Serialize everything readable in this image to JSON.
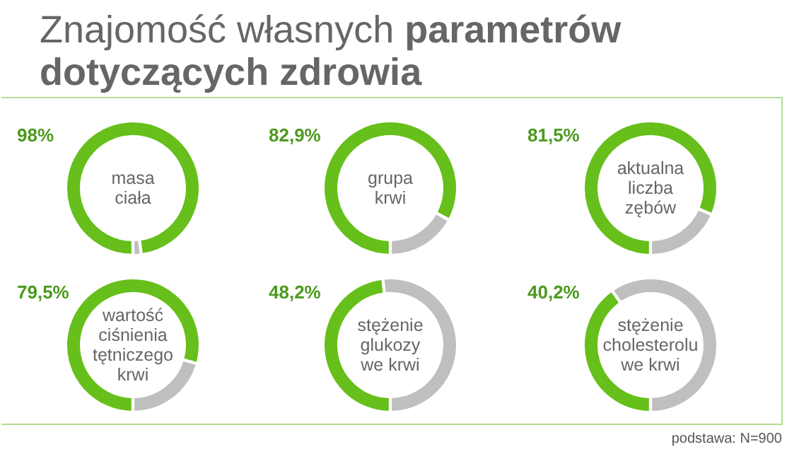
{
  "chart_data": [
    {
      "type": "other",
      "title": "Znajomość własnych parametrów dotyczących zdrowia",
      "annotations": [
        "podstawa: N=900"
      ]
    },
    {
      "type": "donut",
      "title": "masa\nciała",
      "categories": [
        null,
        null
      ],
      "values": [
        98,
        2
      ],
      "colors": [
        "#66bf1a",
        "#bfbfbf"
      ],
      "value_labels": [
        "98%",
        null
      ]
    },
    {
      "type": "donut",
      "title": "grupa\nkrwi",
      "categories": [
        null,
        null
      ],
      "values": [
        82.9,
        17.1
      ],
      "colors": [
        "#66bf1a",
        "#bfbfbf"
      ],
      "value_labels": [
        "82,9%",
        null
      ]
    },
    {
      "type": "donut",
      "title": "aktualna\nliczba\nzębów",
      "categories": [
        null,
        null
      ],
      "values": [
        81.5,
        18.5
      ],
      "colors": [
        "#66bf1a",
        "#bfbfbf"
      ],
      "value_labels": [
        "81,5%",
        null
      ]
    },
    {
      "type": "donut",
      "title": "wartość\nciśnienia\ntętniczego\nkrwi",
      "categories": [
        null,
        null
      ],
      "values": [
        79.5,
        20.5
      ],
      "colors": [
        "#66bf1a",
        "#bfbfbf"
      ],
      "value_labels": [
        "79,5%",
        null
      ]
    },
    {
      "type": "donut",
      "title": "stężenie\nglukozy\nwe krwi",
      "categories": [
        null,
        null
      ],
      "values": [
        48.2,
        51.8
      ],
      "colors": [
        "#66bf1a",
        "#bfbfbf"
      ],
      "value_labels": [
        "48,2%",
        null
      ]
    },
    {
      "type": "donut",
      "title": "stężenie\ncholesterolu\nwe krwi",
      "categories": [
        null,
        null
      ],
      "values": [
        40.2,
        59.8
      ],
      "colors": [
        "#66bf1a",
        "#bfbfbf"
      ],
      "value_labels": [
        "40,2%",
        null
      ]
    }
  ]
}
